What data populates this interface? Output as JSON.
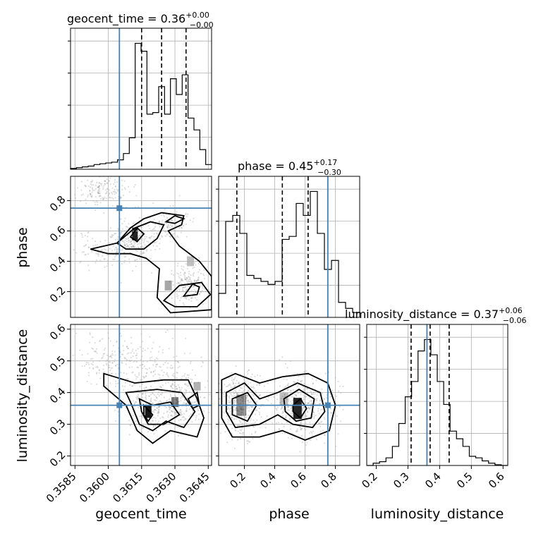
{
  "chart_data": {
    "type": "corner",
    "parameters": [
      "geocent_time",
      "phase",
      "luminosity_distance"
    ],
    "titles": [
      {
        "param": "geocent_time",
        "median": "0.36",
        "plus": "+0.00",
        "minus": "−0.00"
      },
      {
        "param": "phase",
        "median": "0.45",
        "plus": "+0.17",
        "minus": "−0.30"
      },
      {
        "param": "luminosity_distance",
        "median": "0.37",
        "plus": "+0.06",
        "minus": "−0.06"
      }
    ],
    "title_sep": " = ",
    "ranges": {
      "geocent_time": [
        0.3583,
        0.36465
      ],
      "phase": [
        0.03,
        0.96
      ],
      "luminosity_distance": [
        0.17,
        0.615
      ]
    },
    "ticks": {
      "geocent_time": [
        "0.3585",
        "0.3600",
        "0.3615",
        "0.3630",
        "0.3645"
      ],
      "phase": [
        "0.2",
        "0.4",
        "0.6",
        "0.8"
      ],
      "luminosity_distance": [
        "0.2",
        "0.3",
        "0.4",
        "0.5",
        "0.6"
      ]
    },
    "truths": {
      "geocent_time": 0.3605,
      "phase": 0.75,
      "luminosity_distance": 0.36
    },
    "quantiles": {
      "geocent_time": [
        0.3615,
        0.3624,
        0.3635
      ],
      "phase": [
        0.15,
        0.45,
        0.62
      ],
      "luminosity_distance": [
        0.31,
        0.37,
        0.43
      ]
    },
    "histograms": {
      "geocent_time": {
        "edges_start": 0.3583,
        "edges_stop": 0.36465,
        "counts": [
          1,
          2,
          3,
          4,
          6,
          7,
          8,
          9,
          12,
          20,
          40,
          160,
          150,
          70,
          72,
          105,
          70,
          115,
          95,
          120,
          65,
          50,
          25,
          6
        ]
      },
      "phase": {
        "edges_start": 0.03,
        "edges_stop": 0.96,
        "counts": [
          40,
          160,
          170,
          140,
          70,
          65,
          60,
          55,
          60,
          130,
          135,
          190,
          170,
          210,
          140,
          80,
          95,
          25,
          15,
          8
        ]
      },
      "luminosity_distance": {
        "edges_start": 0.17,
        "edges_stop": 0.615,
        "counts": [
          0,
          3,
          5,
          10,
          25,
          55,
          90,
          110,
          150,
          165,
          145,
          110,
          80,
          45,
          35,
          25,
          12,
          10,
          6,
          3,
          1,
          0
        ]
      }
    },
    "grid": true
  }
}
